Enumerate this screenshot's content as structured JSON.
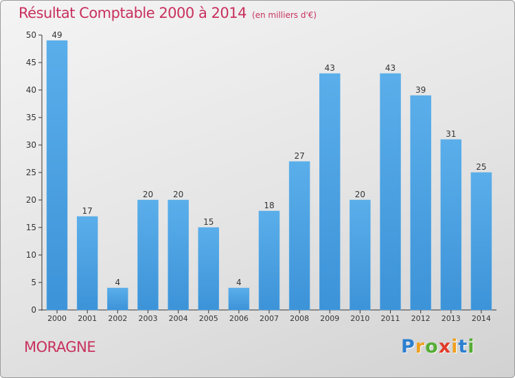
{
  "chart_data": {
    "type": "bar",
    "title": "Résultat Comptable 2000 à 2014",
    "subtitle": "(en milliers d'€)",
    "categories": [
      "2000",
      "2001",
      "2002",
      "2003",
      "2004",
      "2005",
      "2006",
      "2007",
      "2008",
      "2009",
      "2010",
      "2011",
      "2012",
      "2013",
      "2014"
    ],
    "values": [
      49,
      17,
      4,
      20,
      20,
      15,
      4,
      18,
      27,
      43,
      20,
      43,
      39,
      31,
      25
    ],
    "ylim": [
      0,
      50
    ],
    "yticks": [
      0,
      5,
      10,
      15,
      20,
      25,
      30,
      35,
      40,
      45,
      50
    ],
    "grid": false,
    "bar_color": "#3d93d8",
    "bar_color_light": "#5aaeea"
  },
  "place_name": "MORAGNE",
  "brand": {
    "letters": [
      "P",
      "r",
      "o",
      "x",
      "i",
      "t",
      "i"
    ],
    "colors": [
      "#2d7fd0",
      "#f0a020",
      "#54ad34",
      "#e23a2a",
      "#f0a020",
      "#2d7fd0",
      "#54ad34"
    ]
  },
  "colors": {
    "title": "#c8305c",
    "axis": "#333333"
  }
}
